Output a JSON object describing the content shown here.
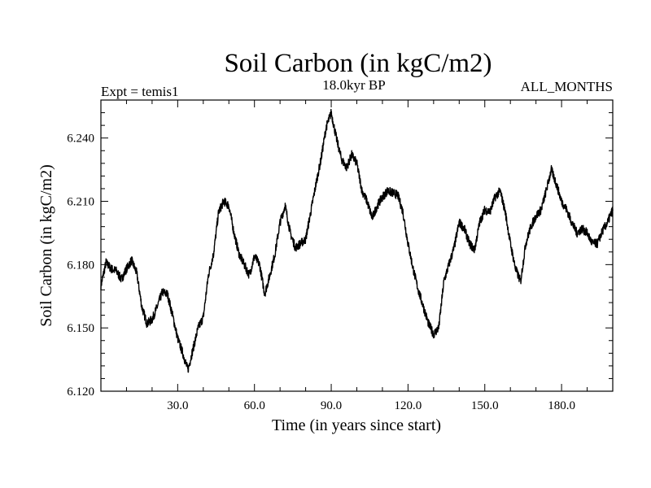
{
  "chart_data": {
    "type": "line",
    "title": "Soil Carbon (in kgC/m2)",
    "subtitle_left": "Expt = temis1",
    "subtitle_center": "18.0kyr BP",
    "subtitle_right": "ALL_MONTHS",
    "xlabel": "Time (in years since start)",
    "ylabel": "Soil Carbon (in kgC/m2)",
    "xlim": [
      0,
      200
    ],
    "ylim": [
      6.12,
      6.258
    ],
    "xticks": [
      30,
      60,
      90,
      120,
      150,
      180
    ],
    "xtick_labels": [
      "30.0",
      "60.0",
      "90.0",
      "120.0",
      "150.0",
      "180.0"
    ],
    "yticks": [
      6.12,
      6.15,
      6.18,
      6.21,
      6.24
    ],
    "ytick_labels": [
      "6.120",
      "6.150",
      "6.180",
      "6.210",
      "6.240"
    ],
    "line_color": "#000000",
    "series": [
      {
        "name": "Soil Carbon",
        "x": [
          0,
          2,
          4,
          6,
          8,
          10,
          12,
          14,
          16,
          18,
          20,
          22,
          24,
          26,
          28,
          30,
          32,
          34,
          36,
          38,
          40,
          42,
          44,
          46,
          48,
          50,
          52,
          54,
          56,
          58,
          60,
          62,
          64,
          66,
          68,
          70,
          72,
          74,
          76,
          78,
          80,
          82,
          84,
          86,
          88,
          90,
          92,
          94,
          96,
          98,
          100,
          102,
          104,
          106,
          108,
          110,
          112,
          114,
          116,
          118,
          120,
          122,
          124,
          126,
          128,
          130,
          132,
          134,
          136,
          138,
          140,
          142,
          144,
          146,
          148,
          150,
          152,
          154,
          156,
          158,
          160,
          162,
          164,
          166,
          168,
          170,
          172,
          174,
          176,
          178,
          180,
          182,
          184,
          186,
          188,
          190,
          192,
          194,
          196,
          198,
          200
        ],
        "y": [
          6.17,
          6.181,
          6.178,
          6.177,
          6.173,
          6.178,
          6.182,
          6.176,
          6.16,
          6.152,
          6.154,
          6.16,
          6.167,
          6.166,
          6.156,
          6.145,
          6.138,
          6.13,
          6.14,
          6.15,
          6.155,
          6.175,
          6.185,
          6.205,
          6.21,
          6.208,
          6.195,
          6.185,
          6.18,
          6.175,
          6.184,
          6.18,
          6.166,
          6.175,
          6.185,
          6.2,
          6.208,
          6.195,
          6.188,
          6.19,
          6.192,
          6.205,
          6.218,
          6.23,
          6.245,
          6.252,
          6.24,
          6.23,
          6.226,
          6.232,
          6.228,
          6.215,
          6.21,
          6.202,
          6.208,
          6.212,
          6.215,
          6.214,
          6.213,
          6.205,
          6.19,
          6.178,
          6.168,
          6.16,
          6.152,
          6.147,
          6.15,
          6.172,
          6.18,
          6.188,
          6.2,
          6.197,
          6.19,
          6.187,
          6.2,
          6.206,
          6.205,
          6.212,
          6.215,
          6.205,
          6.19,
          6.178,
          6.172,
          6.19,
          6.198,
          6.203,
          6.206,
          6.215,
          6.225,
          6.218,
          6.21,
          6.206,
          6.2,
          6.195,
          6.197,
          6.195,
          6.19,
          6.19,
          6.196,
          6.2,
          6.206
        ]
      }
    ]
  }
}
